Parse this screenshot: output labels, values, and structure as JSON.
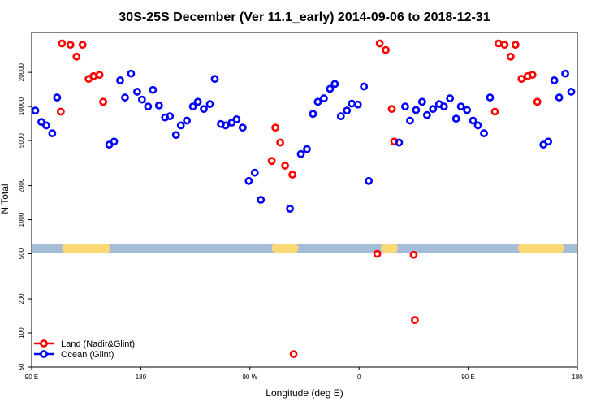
{
  "chart_data": {
    "type": "scatter",
    "title": "30S-25S December (Ver 11.1_early)   2014-09-06 to 2018-12-31",
    "xlabel": "Longitude (deg E)",
    "ylabel": "N Total",
    "y_scale": "log",
    "xlim": [
      90,
      540
    ],
    "ylim": [
      50,
      45000
    ],
    "x_ticks": [
      {
        "value": 90,
        "label": "90 E"
      },
      {
        "value": 180,
        "label": "180"
      },
      {
        "value": 270,
        "label": "90 W"
      },
      {
        "value": 360,
        "label": "0"
      },
      {
        "value": 450,
        "label": "90 E"
      },
      {
        "value": 540,
        "label": "180"
      }
    ],
    "y_ticks": [
      {
        "value": 50,
        "label": "50"
      },
      {
        "value": 100,
        "label": "100"
      },
      {
        "value": 200,
        "label": "200"
      },
      {
        "value": 500,
        "label": "500"
      },
      {
        "value": 1000,
        "label": "1000"
      },
      {
        "value": 2000,
        "label": "2000"
      },
      {
        "value": 5000,
        "label": "5000"
      },
      {
        "value": 10000,
        "label": "10000"
      },
      {
        "value": 20000,
        "label": "20000"
      }
    ],
    "grid": false,
    "legend_position": "bottom-left",
    "band": {
      "value": 560,
      "color": "#a5bcd8",
      "land_color": "#fdd976",
      "land_segments": [
        [
          115,
          155
        ],
        [
          288,
          310
        ],
        [
          378,
          392
        ],
        [
          491,
          529
        ]
      ]
    },
    "series": [
      {
        "name": "Land (Nadir&Glint)",
        "color": "#ff0000",
        "points": [
          [
            114,
            9000
          ],
          [
            115,
            36000
          ],
          [
            122,
            35000
          ],
          [
            127,
            27500
          ],
          [
            132,
            35000
          ],
          [
            137,
            17500
          ],
          [
            141,
            18500
          ],
          [
            146,
            19000
          ],
          [
            149,
            11000
          ],
          [
            288,
            3300
          ],
          [
            291,
            6500
          ],
          [
            295,
            4800
          ],
          [
            299,
            3000
          ],
          [
            305,
            2500
          ],
          [
            306,
            65
          ],
          [
            375,
            500
          ],
          [
            377,
            36000
          ],
          [
            382,
            31500
          ],
          [
            387,
            9500
          ],
          [
            389,
            4900
          ],
          [
            405,
            490
          ],
          [
            406,
            130
          ],
          [
            472,
            9000
          ],
          [
            475,
            36000
          ],
          [
            480,
            35000
          ],
          [
            485,
            27500
          ],
          [
            489,
            35000
          ],
          [
            494,
            17500
          ],
          [
            499,
            18500
          ],
          [
            503,
            19000
          ],
          [
            507,
            11000
          ]
        ]
      },
      {
        "name": "Ocean (Glint)",
        "color": "#0000ff",
        "points": [
          [
            93,
            9200
          ],
          [
            98,
            7300
          ],
          [
            102,
            6800
          ],
          [
            107,
            5800
          ],
          [
            111,
            12000
          ],
          [
            154,
            4600
          ],
          [
            158,
            4900
          ],
          [
            163,
            17000
          ],
          [
            167,
            12000
          ],
          [
            172,
            19500
          ],
          [
            177,
            13500
          ],
          [
            181,
            11500
          ],
          [
            186,
            10000
          ],
          [
            190,
            14000
          ],
          [
            195,
            10200
          ],
          [
            200,
            8000
          ],
          [
            204,
            8200
          ],
          [
            209,
            5600
          ],
          [
            213,
            6800
          ],
          [
            218,
            7500
          ],
          [
            223,
            10000
          ],
          [
            227,
            11000
          ],
          [
            232,
            9500
          ],
          [
            237,
            10500
          ],
          [
            241,
            17500
          ],
          [
            246,
            7000
          ],
          [
            250,
            6800
          ],
          [
            255,
            7200
          ],
          [
            259,
            7700
          ],
          [
            264,
            6500
          ],
          [
            269,
            2200
          ],
          [
            274,
            2600
          ],
          [
            279,
            1500
          ],
          [
            303,
            1250
          ],
          [
            312,
            3800
          ],
          [
            317,
            4200
          ],
          [
            322,
            8600
          ],
          [
            326,
            11000
          ],
          [
            331,
            11800
          ],
          [
            336,
            14300
          ],
          [
            340,
            15800
          ],
          [
            345,
            8200
          ],
          [
            350,
            9200
          ],
          [
            354,
            10600
          ],
          [
            359,
            10400
          ],
          [
            364,
            15000
          ],
          [
            368,
            2200
          ],
          [
            393,
            4800
          ],
          [
            398,
            10000
          ],
          [
            402,
            7500
          ],
          [
            407,
            9300
          ],
          [
            412,
            11000
          ],
          [
            416,
            8400
          ],
          [
            421,
            9500
          ],
          [
            426,
            10500
          ],
          [
            430,
            10000
          ],
          [
            435,
            11800
          ],
          [
            440,
            7800
          ],
          [
            444,
            10000
          ],
          [
            449,
            9300
          ],
          [
            454,
            7500
          ],
          [
            458,
            6800
          ],
          [
            463,
            5800
          ],
          [
            468,
            12000
          ],
          [
            512,
            4600
          ],
          [
            516,
            4900
          ],
          [
            521,
            17000
          ],
          [
            525,
            12000
          ],
          [
            530,
            19500
          ],
          [
            535,
            13500
          ]
        ]
      }
    ]
  }
}
